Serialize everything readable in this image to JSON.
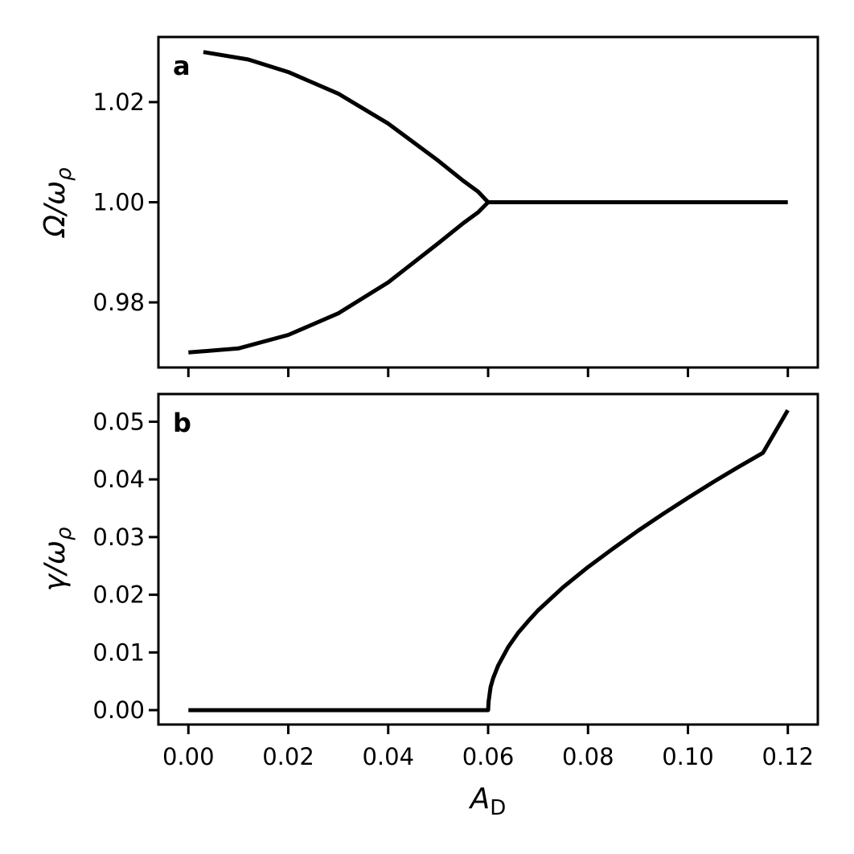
{
  "chart_data": [
    {
      "panel": "a",
      "type": "line",
      "ylabel_text": "Ω/ω",
      "ylabel_sub": "ρ",
      "xlim": [
        -0.006,
        0.126
      ],
      "ylim": [
        0.967,
        1.033
      ],
      "yticks": [
        0.98,
        1.0,
        1.02
      ],
      "ytick_labels": [
        "0.98",
        "1.00",
        "1.02"
      ],
      "xticks": [
        0.0,
        0.02,
        0.04,
        0.06,
        0.08,
        0.1,
        0.12
      ],
      "show_xtick_labels": false,
      "grid": false,
      "series": [
        {
          "x": [
            0.003,
            0.012,
            0.02,
            0.03,
            0.04,
            0.05,
            0.055,
            0.058,
            0.06
          ],
          "y": [
            1.03,
            1.0285,
            1.026,
            1.0217,
            1.0157,
            1.0083,
            1.0043,
            1.0021,
            1.0
          ]
        },
        {
          "x": [
            0.0,
            0.01,
            0.02,
            0.03,
            0.04,
            0.05,
            0.055,
            0.058,
            0.06
          ],
          "y": [
            0.97,
            0.9708,
            0.9735,
            0.9778,
            0.984,
            0.9918,
            0.9958,
            0.998,
            1.0
          ]
        },
        {
          "x": [
            0.06,
            0.12
          ],
          "y": [
            1.0,
            1.0
          ]
        }
      ]
    },
    {
      "panel": "b",
      "type": "line",
      "ylabel_text": "γ/ω",
      "ylabel_sub": "ρ",
      "xlabel_text": "A",
      "xlabel_sub": "D",
      "xlim": [
        -0.006,
        0.126
      ],
      "ylim": [
        -0.0025,
        0.0548
      ],
      "yticks": [
        0.0,
        0.01,
        0.02,
        0.03,
        0.04,
        0.05
      ],
      "ytick_labels": [
        "0.00",
        "0.01",
        "0.02",
        "0.03",
        "0.04",
        "0.05"
      ],
      "xticks": [
        0.0,
        0.02,
        0.04,
        0.06,
        0.08,
        0.1,
        0.12
      ],
      "xtick_labels": [
        "0.00",
        "0.02",
        "0.04",
        "0.06",
        "0.08",
        "0.10",
        "0.12"
      ],
      "grid": false,
      "series": [
        {
          "x": [
            0.0,
            0.06,
            0.0601,
            0.0605,
            0.061,
            0.062,
            0.064,
            0.066,
            0.068,
            0.07,
            0.075,
            0.08,
            0.085,
            0.09,
            0.095,
            0.1,
            0.105,
            0.11,
            0.115,
            0.12
          ],
          "y": [
            0.0,
            0.0,
            0.0015,
            0.004,
            0.0055,
            0.0077,
            0.0109,
            0.0134,
            0.0154,
            0.0173,
            0.0213,
            0.0248,
            0.028,
            0.0311,
            0.034,
            0.0368,
            0.0395,
            0.0421,
            0.0446,
            0.052
          ]
        }
      ]
    }
  ]
}
